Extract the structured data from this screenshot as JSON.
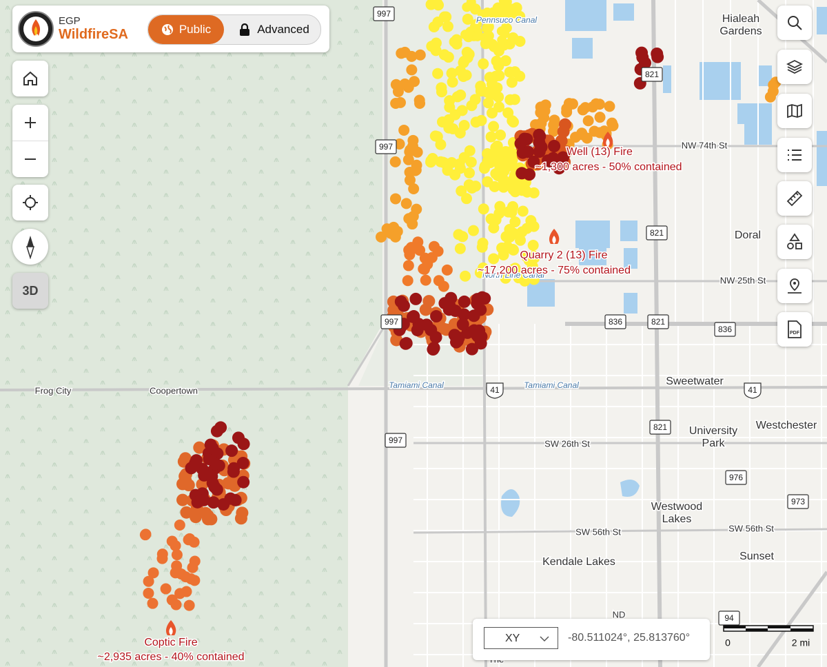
{
  "header": {
    "org": "EGP",
    "app": "WildfireSA",
    "modes": [
      "Public",
      "Advanced"
    ]
  },
  "view_toggle": "3D",
  "toolbar": {
    "pdf_label": "PDF"
  },
  "map_labels": [
    {
      "lines": [
        "Hialeah",
        "Gardens"
      ]
    },
    {
      "lines": [
        "NW 74th St"
      ]
    },
    {
      "lines": [
        "Doral"
      ]
    },
    {
      "lines": [
        "NW 25th St"
      ]
    },
    {
      "lines": [
        "Sweetwater"
      ]
    },
    {
      "lines": [
        "Westchester"
      ]
    },
    {
      "lines": [
        "University",
        "Park"
      ]
    },
    {
      "lines": [
        "SW 26th St"
      ]
    },
    {
      "lines": [
        "Westwood",
        "Lakes"
      ]
    },
    {
      "lines": [
        "SW 56th St"
      ]
    },
    {
      "lines": [
        "SW 56th St"
      ]
    },
    {
      "lines": [
        "Sunset"
      ]
    },
    {
      "lines": [
        "Kendale Lakes"
      ]
    },
    {
      "lines": [
        "Frog City"
      ]
    },
    {
      "lines": [
        "Coopertown"
      ]
    },
    {
      "lines": [
        "ND"
      ]
    },
    {
      "lines": [
        "The"
      ]
    }
  ],
  "water_labels": [
    "Tamiami Canal",
    "Tamiami Canal",
    "Pennsuco Canal",
    "North Line Canal"
  ],
  "road_shields": [
    "997",
    "997",
    "997",
    "997",
    "821",
    "821",
    "821",
    "821",
    "836",
    "836",
    "41",
    "41",
    "976",
    "973",
    "94"
  ],
  "fires": [
    {
      "name": "Well (13) Fire",
      "detail": "~1,300 acres - 50% contained"
    },
    {
      "name": "Quarry 2 (13) Fire",
      "detail": "~17,200 acres - 75% contained"
    },
    {
      "name": "Coptic Fire",
      "detail": "~2,935 acres - 40% contained"
    }
  ],
  "coordinates": {
    "format": "XY",
    "value": "-80.511024°, 25.813760°"
  },
  "scale": {
    "start": "0",
    "end": "2 mi"
  }
}
